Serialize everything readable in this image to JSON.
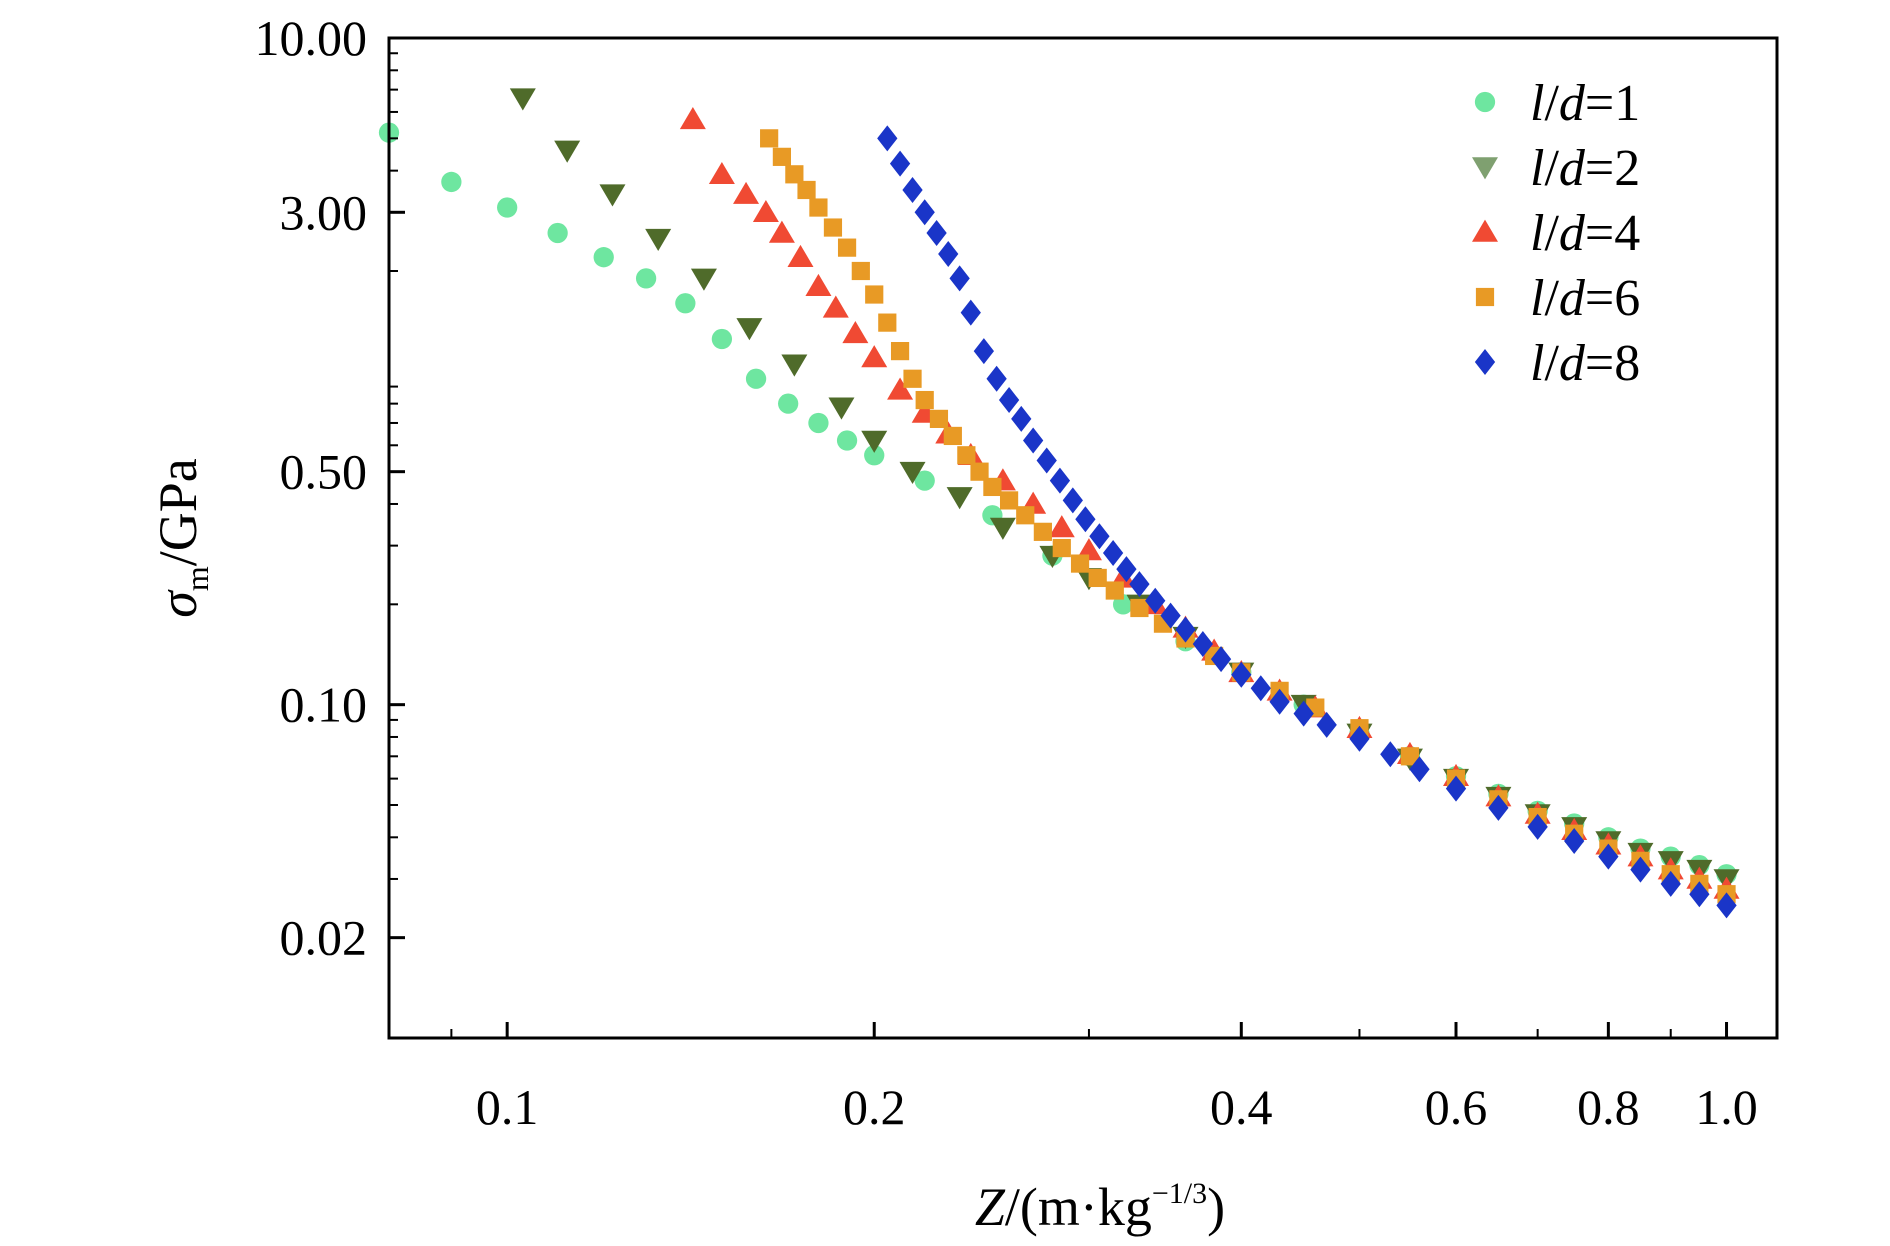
{
  "chart_data": {
    "type": "scatter",
    "title": "",
    "xlabel": {
      "var": "Z",
      "unit_open": "/(m·kg",
      "exponent": "−1/3",
      "unit_close": ")"
    },
    "ylabel": {
      "var": "σ",
      "subscript": "m",
      "unit": "/GPa"
    },
    "xscale": "log",
    "yscale": "log",
    "xlim": [
      0.08,
      1.1
    ],
    "ylim": [
      0.01,
      10
    ],
    "xticks": [
      {
        "value": 0.1,
        "label": "0.1"
      },
      {
        "value": 0.2,
        "label": "0.2"
      },
      {
        "value": 0.4,
        "label": "0.4"
      },
      {
        "value": 0.6,
        "label": "0.6"
      },
      {
        "value": 0.8,
        "label": "0.8"
      },
      {
        "value": 1.0,
        "label": "1.0"
      }
    ],
    "yticks": [
      {
        "value": 10,
        "label": "10.00"
      },
      {
        "value": 3,
        "label": "3.00"
      },
      {
        "value": 0.5,
        "label": "0.50"
      },
      {
        "value": 0.1,
        "label": "0.10"
      },
      {
        "value": 0.02,
        "label": "0.02"
      }
    ],
    "grid": false,
    "legend_position": "top-right",
    "series": [
      {
        "name": "l/d=1",
        "legend_italic": "l",
        "legend_sep": "/",
        "legend_italic2": "d",
        "legend_tail": "=1",
        "marker": "circle",
        "color": "#6ee6a0",
        "x": [
          0.08,
          0.09,
          0.1,
          0.11,
          0.12,
          0.13,
          0.14,
          0.15,
          0.16,
          0.17,
          0.18,
          0.19,
          0.2,
          0.22,
          0.25,
          0.28,
          0.32,
          0.36,
          0.4,
          0.45,
          0.5,
          0.55,
          0.6,
          0.65,
          0.7,
          0.75,
          0.8,
          0.85,
          0.9,
          0.95,
          1.0
        ],
        "y": [
          5.2,
          3.7,
          3.1,
          2.6,
          2.2,
          1.9,
          1.6,
          1.25,
          0.95,
          0.8,
          0.7,
          0.62,
          0.56,
          0.47,
          0.37,
          0.28,
          0.2,
          0.155,
          0.125,
          0.1,
          0.082,
          0.07,
          0.061,
          0.054,
          0.048,
          0.044,
          0.04,
          0.037,
          0.035,
          0.033,
          0.031
        ]
      },
      {
        "name": "l/d=2",
        "legend_italic": "l",
        "legend_sep": "/",
        "legend_italic2": "d",
        "legend_tail": "=2",
        "marker": "triangle-down",
        "color": "#4f6b2a",
        "legend_color": "#7fa070",
        "x": [
          0.103,
          0.112,
          0.122,
          0.133,
          0.145,
          0.158,
          0.172,
          0.188,
          0.2,
          0.215,
          0.235,
          0.255,
          0.28,
          0.3,
          0.33,
          0.36,
          0.4,
          0.45,
          0.5,
          0.55,
          0.6,
          0.65,
          0.7,
          0.75,
          0.8,
          0.85,
          0.9,
          0.95,
          1.0
        ],
        "y": [
          6.6,
          4.6,
          3.4,
          2.5,
          1.9,
          1.35,
          1.05,
          0.78,
          0.62,
          0.5,
          0.42,
          0.34,
          0.28,
          0.24,
          0.2,
          0.16,
          0.125,
          0.1,
          0.082,
          0.069,
          0.06,
          0.053,
          0.047,
          0.043,
          0.039,
          0.036,
          0.034,
          0.032,
          0.03
        ]
      },
      {
        "name": "l/d=4",
        "legend_italic": "l",
        "legend_sep": "/",
        "legend_italic2": "d",
        "legend_tail": "=4",
        "marker": "triangle-up",
        "color": "#f04a33",
        "x": [
          0.142,
          0.15,
          0.157,
          0.163,
          0.168,
          0.174,
          0.18,
          0.186,
          0.193,
          0.2,
          0.21,
          0.22,
          0.23,
          0.24,
          0.255,
          0.27,
          0.285,
          0.3,
          0.32,
          0.34,
          0.36,
          0.38,
          0.4,
          0.43,
          0.46,
          0.5,
          0.55,
          0.6,
          0.65,
          0.7,
          0.75,
          0.8,
          0.85,
          0.9,
          0.95,
          1.0
        ],
        "y": [
          5.7,
          3.9,
          3.4,
          3.0,
          2.6,
          2.2,
          1.8,
          1.55,
          1.3,
          1.1,
          0.88,
          0.75,
          0.65,
          0.56,
          0.47,
          0.4,
          0.34,
          0.29,
          0.24,
          0.2,
          0.17,
          0.145,
          0.125,
          0.11,
          0.098,
          0.085,
          0.071,
          0.061,
          0.053,
          0.047,
          0.042,
          0.038,
          0.035,
          0.032,
          0.03,
          0.028
        ]
      },
      {
        "name": "l/d=6",
        "legend_italic": "l",
        "legend_sep": "/",
        "legend_italic2": "d",
        "legend_tail": "=6",
        "marker": "square",
        "color": "#e89a25",
        "x": [
          0.164,
          0.168,
          0.172,
          0.176,
          0.18,
          0.185,
          0.19,
          0.195,
          0.2,
          0.205,
          0.21,
          0.215,
          0.22,
          0.226,
          0.232,
          0.238,
          0.244,
          0.25,
          0.258,
          0.266,
          0.275,
          0.285,
          0.295,
          0.305,
          0.315,
          0.33,
          0.345,
          0.36,
          0.38,
          0.4,
          0.43,
          0.46,
          0.5,
          0.55,
          0.6,
          0.65,
          0.7,
          0.75,
          0.8,
          0.85,
          0.9,
          0.95,
          1.0
        ],
        "y": [
          5.0,
          4.4,
          3.9,
          3.5,
          3.1,
          2.7,
          2.35,
          2.0,
          1.7,
          1.4,
          1.15,
          0.95,
          0.82,
          0.72,
          0.64,
          0.56,
          0.5,
          0.45,
          0.41,
          0.37,
          0.33,
          0.295,
          0.265,
          0.24,
          0.22,
          0.195,
          0.175,
          0.158,
          0.14,
          0.125,
          0.11,
          0.098,
          0.085,
          0.07,
          0.06,
          0.052,
          0.046,
          0.041,
          0.037,
          0.034,
          0.031,
          0.029,
          0.027
        ]
      },
      {
        "name": "l/d=8",
        "legend_italic": "l",
        "legend_sep": "/",
        "legend_italic2": "d",
        "legend_tail": "=8",
        "marker": "diamond",
        "color": "#1a35c8",
        "x": [
          0.205,
          0.21,
          0.215,
          0.22,
          0.225,
          0.23,
          0.235,
          0.24,
          0.246,
          0.252,
          0.258,
          0.264,
          0.27,
          0.277,
          0.284,
          0.291,
          0.298,
          0.306,
          0.314,
          0.322,
          0.33,
          0.34,
          0.35,
          0.36,
          0.372,
          0.385,
          0.4,
          0.415,
          0.43,
          0.45,
          0.47,
          0.5,
          0.53,
          0.56,
          0.6,
          0.65,
          0.7,
          0.75,
          0.8,
          0.85,
          0.9,
          0.95,
          1.0
        ],
        "y": [
          5.0,
          4.2,
          3.5,
          3.0,
          2.6,
          2.25,
          1.9,
          1.5,
          1.15,
          0.95,
          0.82,
          0.72,
          0.62,
          0.54,
          0.47,
          0.41,
          0.36,
          0.32,
          0.285,
          0.255,
          0.23,
          0.205,
          0.185,
          0.168,
          0.152,
          0.137,
          0.123,
          0.112,
          0.102,
          0.094,
          0.087,
          0.079,
          0.071,
          0.064,
          0.056,
          0.049,
          0.043,
          0.039,
          0.035,
          0.032,
          0.029,
          0.027,
          0.025
        ]
      }
    ]
  }
}
